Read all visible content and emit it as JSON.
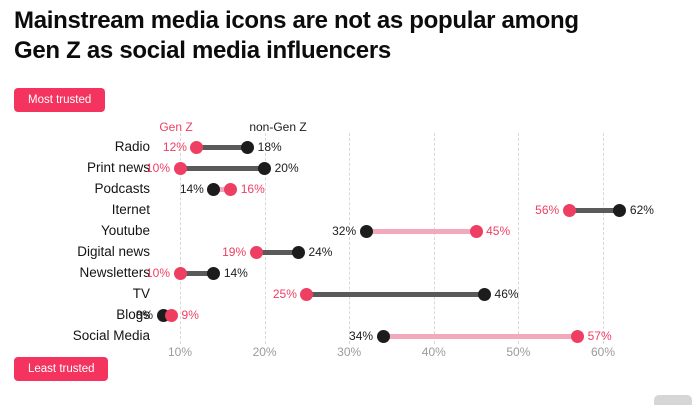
{
  "title": {
    "line1": "Mainstream media icons are not as popular among",
    "line2": "Gen Z as social media influencers"
  },
  "badges": {
    "most": "Most trusted",
    "least": "Least trusted"
  },
  "colors": {
    "pink": "#ee3f63",
    "pink_light": "#f2a9bb",
    "black": "#1c1c1c",
    "gray_line": "#5a5a5a",
    "grid": "#d8d8d8",
    "tick_text": "#9b9b9b",
    "badge_bg": "#f4335f"
  },
  "chart_data": {
    "type": "dumbbell",
    "title": "Mainstream media icons are not as popular among Gen Z as social media influencers",
    "legend": [
      {
        "name": "Gen Z",
        "color": "#ee3f63"
      },
      {
        "name": "non-Gen Z",
        "color": "#1c1c1c"
      }
    ],
    "categories": [
      "Radio",
      "Print news",
      "Podcasts",
      "Iternet",
      "Youtube",
      "Digital news",
      "Newsletters",
      "TV",
      "Blogs",
      "Social Media"
    ],
    "series": [
      {
        "name": "Gen Z",
        "values": [
          12,
          10,
          16,
          56,
          45,
          19,
          10,
          25,
          9,
          57
        ]
      },
      {
        "name": "non-Gen Z",
        "values": [
          18,
          20,
          14,
          62,
          32,
          24,
          14,
          46,
          8,
          34
        ]
      }
    ],
    "x_ticks": [
      {
        "value": 10,
        "label": "10%"
      },
      {
        "value": 20,
        "label": "20%"
      },
      {
        "value": 30,
        "label": "30%"
      },
      {
        "value": 40,
        "label": "40%"
      },
      {
        "value": 50,
        "label": "50%"
      },
      {
        "value": 60,
        "label": "60%"
      }
    ],
    "xlim": [
      5,
      66
    ],
    "grid": "vertical-dashed",
    "annotations": {
      "top_left": "Most trusted",
      "bottom_left": "Least trusted"
    }
  }
}
